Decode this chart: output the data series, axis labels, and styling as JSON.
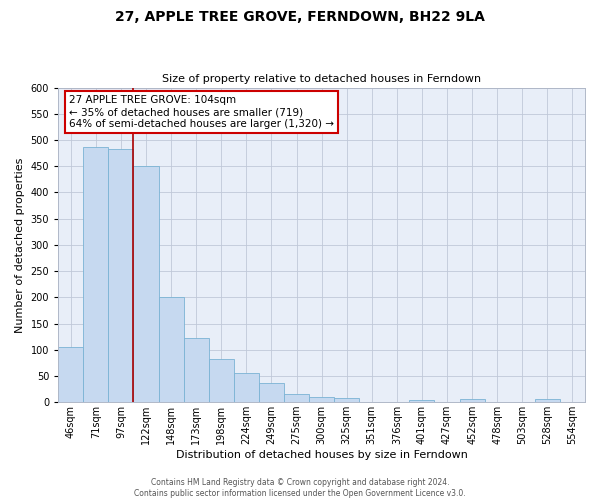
{
  "title": "27, APPLE TREE GROVE, FERNDOWN, BH22 9LA",
  "subtitle": "Size of property relative to detached houses in Ferndown",
  "xlabel": "Distribution of detached houses by size in Ferndown",
  "ylabel": "Number of detached properties",
  "bar_labels": [
    "46sqm",
    "71sqm",
    "97sqm",
    "122sqm",
    "148sqm",
    "173sqm",
    "198sqm",
    "224sqm",
    "249sqm",
    "275sqm",
    "300sqm",
    "325sqm",
    "351sqm",
    "376sqm",
    "401sqm",
    "427sqm",
    "452sqm",
    "478sqm",
    "503sqm",
    "528sqm",
    "554sqm"
  ],
  "bar_values": [
    105,
    487,
    483,
    450,
    201,
    122,
    82,
    55,
    37,
    16,
    9,
    8,
    1,
    1,
    5,
    1,
    6,
    1,
    1,
    6,
    1
  ],
  "bar_color": "#c6d9f0",
  "bar_edge_color": "#7ab3d4",
  "property_line_idx": 2.5,
  "property_line_color": "#aa0000",
  "ylim": [
    0,
    600
  ],
  "yticks": [
    0,
    50,
    100,
    150,
    200,
    250,
    300,
    350,
    400,
    450,
    500,
    550,
    600
  ],
  "annotation_title": "27 APPLE TREE GROVE: 104sqm",
  "annotation_line1": "← 35% of detached houses are smaller (719)",
  "annotation_line2": "64% of semi-detached houses are larger (1,320) →",
  "annotation_box_facecolor": "#ffffff",
  "annotation_box_edgecolor": "#cc0000",
  "footer_line1": "Contains HM Land Registry data © Crown copyright and database right 2024.",
  "footer_line2": "Contains public sector information licensed under the Open Government Licence v3.0.",
  "plot_bg_color": "#e8eef8",
  "fig_bg_color": "#ffffff",
  "grid_color": "#c0c8d8",
  "title_fontsize": 10,
  "subtitle_fontsize": 8,
  "ylabel_fontsize": 8,
  "xlabel_fontsize": 8,
  "tick_fontsize": 7,
  "annotation_fontsize": 7.5,
  "footer_fontsize": 5.5
}
